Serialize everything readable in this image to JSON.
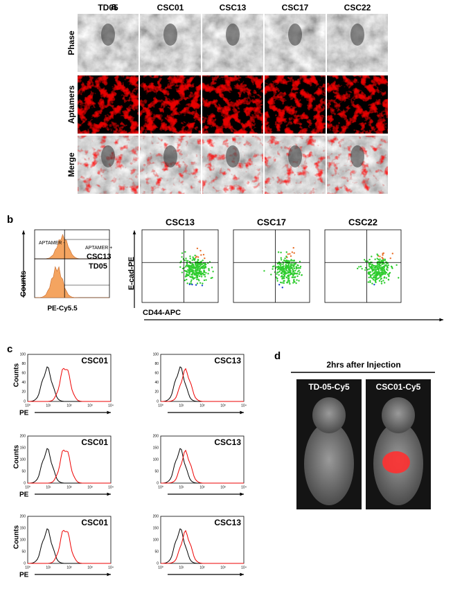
{
  "panel_a": {
    "label": "a",
    "columns": [
      "TD05",
      "CSC01",
      "CSC13",
      "CSC17",
      "CSC22"
    ],
    "rows": [
      "Phase",
      "Aptamers",
      "Merge"
    ]
  },
  "panel_b": {
    "label": "b",
    "histogram": {
      "y_label": "Counts",
      "x_label": "PE-Cy5.5",
      "gate_negative": "APTAMER -",
      "gate_positive": "APTAMER +",
      "samples": [
        "CSC13",
        "TD05"
      ]
    },
    "scatter": {
      "titles": [
        "CSC13",
        "CSC17",
        "CSC22"
      ],
      "y_label": "E-cad-PE",
      "x_label": "CD44-APC"
    }
  },
  "panel_c": {
    "label": "c",
    "y_label": "Counts",
    "x_label": "PE",
    "samples": [
      "CSC01",
      "CSC13"
    ],
    "rows": [
      {
        "yticks": [
          0,
          20,
          40,
          60,
          80,
          100
        ]
      },
      {
        "yticks": [
          0,
          50,
          100,
          150,
          200
        ]
      },
      {
        "yticks": [
          0,
          50,
          100,
          150,
          200
        ]
      }
    ],
    "xticks": [
      "10⁰",
      "10¹",
      "10²",
      "10³",
      "10⁴"
    ]
  },
  "panel_d": {
    "label": "d",
    "title": "2hrs after Injection",
    "images": [
      "TD-05-Cy5",
      "CSC01-Cy5"
    ]
  }
}
